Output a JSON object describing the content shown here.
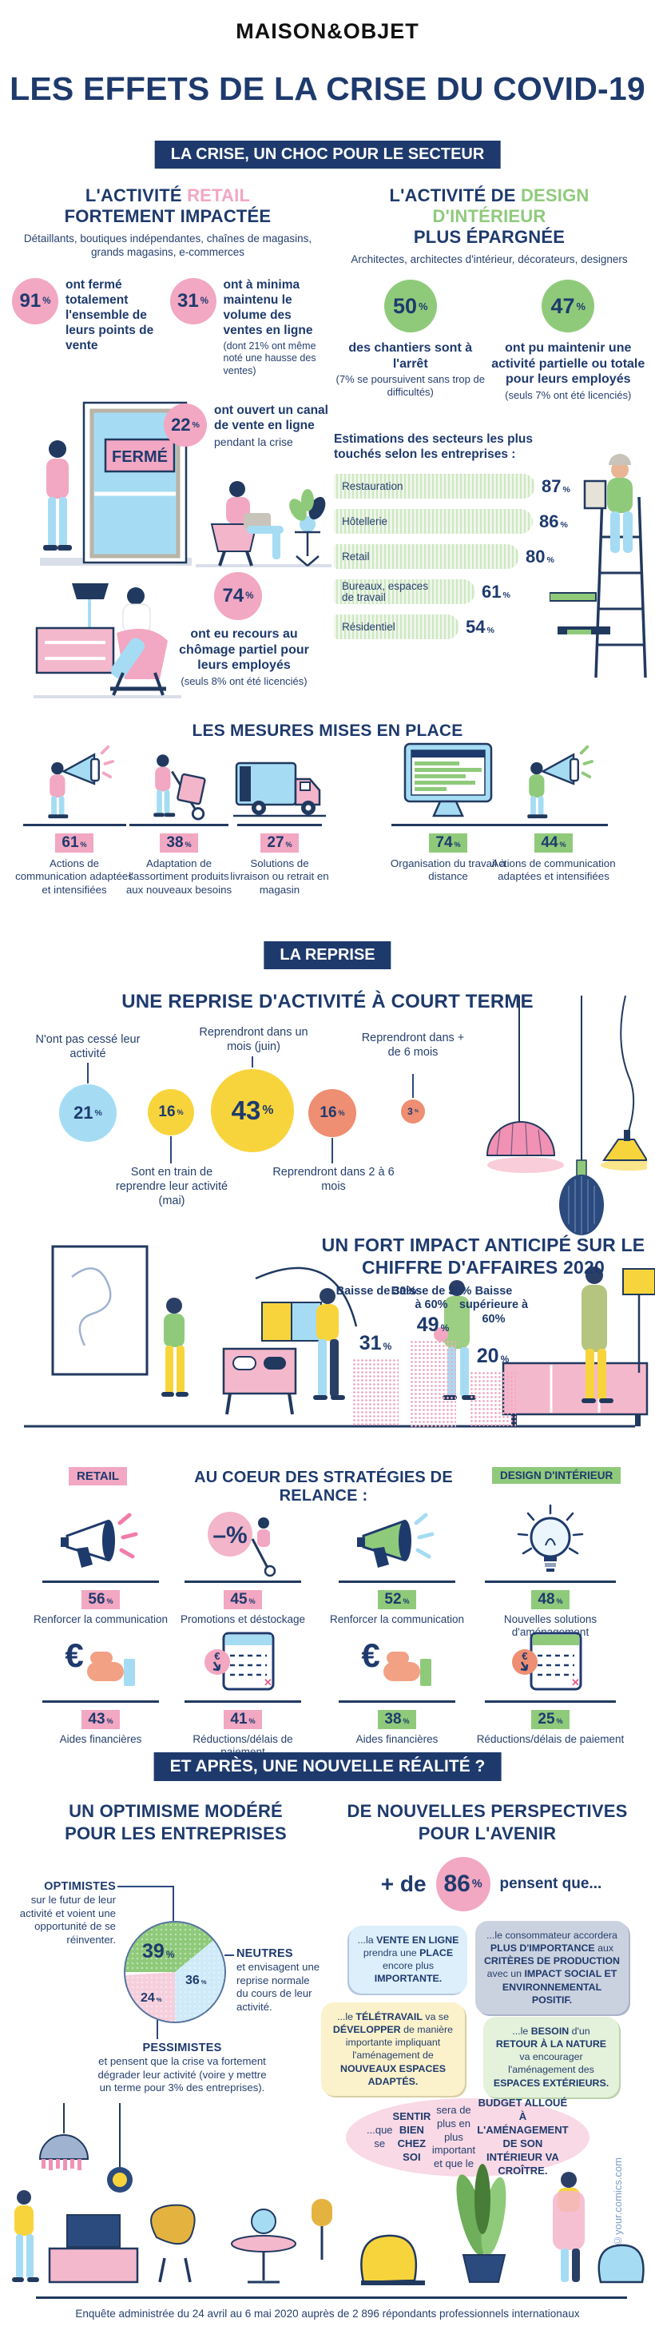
{
  "ui": {
    "pct": "%",
    "euro": "€",
    "minus_pct": "–%"
  },
  "header": {
    "brand": "MAISON&OBJET",
    "title": "LES EFFETS DE LA CRISE DU COVID-19"
  },
  "s1": {
    "banner": "LA CRISE, UN CHOC POUR LE SECTEUR",
    "retail": {
      "t1": "L'ACTIVITÉ ",
      "t1b": "RETAIL",
      "t2": "FORTEMENT IMPACTÉE",
      "subtitle": "Détaillants, boutiques indépendantes, chaînes de magasins, grands magasins, e-commerces",
      "door_sign": "FERMÉ",
      "stats": [
        {
          "v": "91",
          "text": "ont fermé totalement l'ensemble de leurs points de vente",
          "note": ""
        },
        {
          "v": "31",
          "text": "ont à minima maintenu le volume des ventes en ligne",
          "note": "(dont 21% ont même noté une hausse des ventes)"
        },
        {
          "v": "22",
          "text": "ont ouvert un canal de vente en ligne",
          "note": "pendant la crise"
        },
        {
          "v": "74",
          "text": "ont eu recours au chômage partiel pour leurs employés",
          "note": "(seuls 8% ont été licenciés)"
        }
      ]
    },
    "design": {
      "t1": "L'ACTIVITÉ DE ",
      "t1b": "DESIGN D'INTÉRIEUR",
      "t2": "PLUS ÉPARGNÉE",
      "subtitle": "Architectes, architectes d'intérieur, décorateurs, designers",
      "stats": [
        {
          "v": "50",
          "text": "des chantiers sont à l'arrêt",
          "note": "(7% se poursuivent sans trop de difficultés)"
        },
        {
          "v": "47",
          "text": "ont pu maintenir une activité partielle ou totale pour leurs employés",
          "note": "(seuls 7% ont été licenciés)"
        }
      ],
      "chart": {
        "type": "bar",
        "title": "Estimations des secteurs les plus touchés selon les entreprises :",
        "unit": "%",
        "rows": [
          {
            "label": "Restauration",
            "v": 87
          },
          {
            "label": "Hôtellerie",
            "v": 86
          },
          {
            "label": "Retail",
            "v": 80
          },
          {
            "label": "Bureaux, espaces de travail",
            "v": 61
          },
          {
            "label": "Résidentiel",
            "v": 54
          }
        ]
      }
    }
  },
  "mesures": {
    "title": "LES MESURES MISES EN PLACE",
    "items": [
      {
        "v": "61",
        "label": "Actions de communication adaptées et intensifiées",
        "color": "pink",
        "icon": "megaphone-icon"
      },
      {
        "v": "38",
        "label": "Adaptation de l'assortiment produits aux nouveaux besoins",
        "color": "pink",
        "icon": "handtruck-icon"
      },
      {
        "v": "27",
        "label": "Solutions de livraison ou retrait en magasin",
        "color": "pink",
        "icon": "delivery-truck-icon"
      },
      {
        "v": "74",
        "label": "Organisation du travail à distance",
        "color": "green",
        "icon": "monitor-icon"
      },
      {
        "v": "44",
        "label": "Actions de communication adaptées et intensifiées",
        "color": "green",
        "icon": "megaphone-icon"
      }
    ]
  },
  "reprise": {
    "banner": "LA REPRISE",
    "title": "UNE REPRISE D'ACTIVITÉ À COURT TERME",
    "type": "bubble",
    "bubbles": [
      {
        "v": "21",
        "label": "N'ont pas cessé leur activité",
        "color": "blue"
      },
      {
        "v": "16",
        "label": "Sont en train de reprendre leur activité (mai)",
        "color": "yellow"
      },
      {
        "v": "43",
        "label": "Reprendront dans un mois (juin)",
        "color": "yellow"
      },
      {
        "v": "16",
        "label": "Reprendront dans 2 à 6 mois",
        "color": "salmon"
      },
      {
        "v": "3",
        "label": "Reprendront dans + de 6 mois",
        "color": "salmon"
      }
    ]
  },
  "impact": {
    "title": "UN FORT IMPACT ANTICIPÉ SUR LE CHIFFRE D'AFFAIRES 2020",
    "type": "bar",
    "cols": [
      {
        "label": "Baisse de 30%",
        "v": "31"
      },
      {
        "label": "Baisse de 30% à 60%",
        "v": "49"
      },
      {
        "label": "Baisse supérieure à 60%",
        "v": "20"
      }
    ]
  },
  "strategies": {
    "title": "AU COEUR DES STRATÉGIES DE RELANCE :",
    "retail_badge": "RETAIL",
    "design_badge": "DESIGN D'INTÉRIEUR",
    "items": [
      {
        "v": "56",
        "label": "Renforcer la communication",
        "color": "pink",
        "icon": "megaphone-icon"
      },
      {
        "v": "45",
        "label": "Promotions et déstockage",
        "color": "pink",
        "icon": "discount-icon"
      },
      {
        "v": "52",
        "label": "Renforcer la communication",
        "color": "green",
        "icon": "megaphone-icon"
      },
      {
        "v": "48",
        "label": "Nouvelles solutions d'aménagement",
        "color": "green",
        "icon": "lightbulb-icon"
      },
      {
        "v": "43",
        "label": "Aides financières",
        "color": "pink",
        "icon": "euro-hand-icon"
      },
      {
        "v": "41",
        "label": "Réductions/délais de paiement",
        "color": "pink",
        "icon": "calendar-euro-icon"
      },
      {
        "v": "38",
        "label": "Aides financières",
        "color": "green",
        "icon": "euro-hand-icon"
      },
      {
        "v": "25",
        "label": "Réductions/délais de paiement",
        "color": "green",
        "icon": "calendar-euro-icon"
      }
    ]
  },
  "apres": {
    "banner": "ET APRÈS, UNE NOUVELLE RÉALITÉ ?",
    "left": {
      "title": "UN OPTIMISME MODÉRÉ POUR LES ENTREPRISES",
      "pie": {
        "type": "pie",
        "slices": [
          {
            "name": "OPTIMISTES",
            "v": "39",
            "color": "#8fca7b",
            "desc": "sur le futur de leur activité et voient une opportunité de se réinventer."
          },
          {
            "name": "NEUTRES",
            "v": "36",
            "color": "#cfeaf8",
            "desc": "et envisagent une reprise normale du cours de leur activité."
          },
          {
            "name": "PESSIMISTES",
            "v": "24",
            "color": "#f6cfdd",
            "desc": "et pensent que la crise va fortement dégrader leur activité (voire y mettre un terme pour 3% des entreprises)."
          }
        ]
      }
    },
    "right": {
      "title": "DE NOUVELLES PERSPECTIVES POUR L'AVENIR",
      "lead_pre": "+ de",
      "lead_v": "86",
      "lead_post": "pensent que...",
      "cards": [
        {
          "color": "blue",
          "segs": [
            [
              "...la ",
              0
            ],
            [
              "VENTE EN LIGNE",
              1
            ],
            [
              " prendra une ",
              0
            ],
            [
              "PLACE",
              1
            ],
            [
              " encore plus ",
              0
            ],
            [
              "IMPORTANTE.",
              1
            ]
          ]
        },
        {
          "color": "gray",
          "segs": [
            [
              "...le consommateur accordera ",
              0
            ],
            [
              "PLUS D'IMPORTANCE",
              1
            ],
            [
              " aux ",
              0
            ],
            [
              "CRITÈRES DE PRODUCTION",
              1
            ],
            [
              " avec un ",
              0
            ],
            [
              "IMPACT SOCIAL ET ENVIRONNEMENTAL POSITIF.",
              1
            ]
          ]
        },
        {
          "color": "yellow",
          "segs": [
            [
              "...le ",
              0
            ],
            [
              "TÉLÉTRAVAIL",
              1
            ],
            [
              " va se ",
              0
            ],
            [
              "DÉVELOPPER",
              1
            ],
            [
              " de manière importante impliquant l'aménagement de ",
              0
            ],
            [
              "NOUVEAUX ESPACES ADAPTÉS.",
              1
            ]
          ]
        },
        {
          "color": "green",
          "segs": [
            [
              "...le ",
              0
            ],
            [
              "BESOIN",
              1
            ],
            [
              " d'un ",
              0
            ],
            [
              "RETOUR À LA NATURE",
              1
            ],
            [
              " va encourager l'aménagement des ",
              0
            ],
            [
              "ESPACES EXTÉRIEURS.",
              1
            ]
          ]
        },
        {
          "color": "pink",
          "segs": [
            [
              "...que se ",
              0
            ],
            [
              "SENTIR BIEN CHEZ SOI",
              1
            ],
            [
              " sera de plus en plus important et que le ",
              0
            ],
            [
              "BUDGET ALLOUÉ À L'AMÉNAGEMENT DE SON INTÉRIEUR VA CROÎTRE.",
              1
            ]
          ]
        }
      ]
    }
  },
  "footer": {
    "note": "Enquête administrée du 24 avril au 6 mai 2020 auprès de 2 896 répondants professionnels internationaux",
    "credit": "©your.comics.com"
  }
}
